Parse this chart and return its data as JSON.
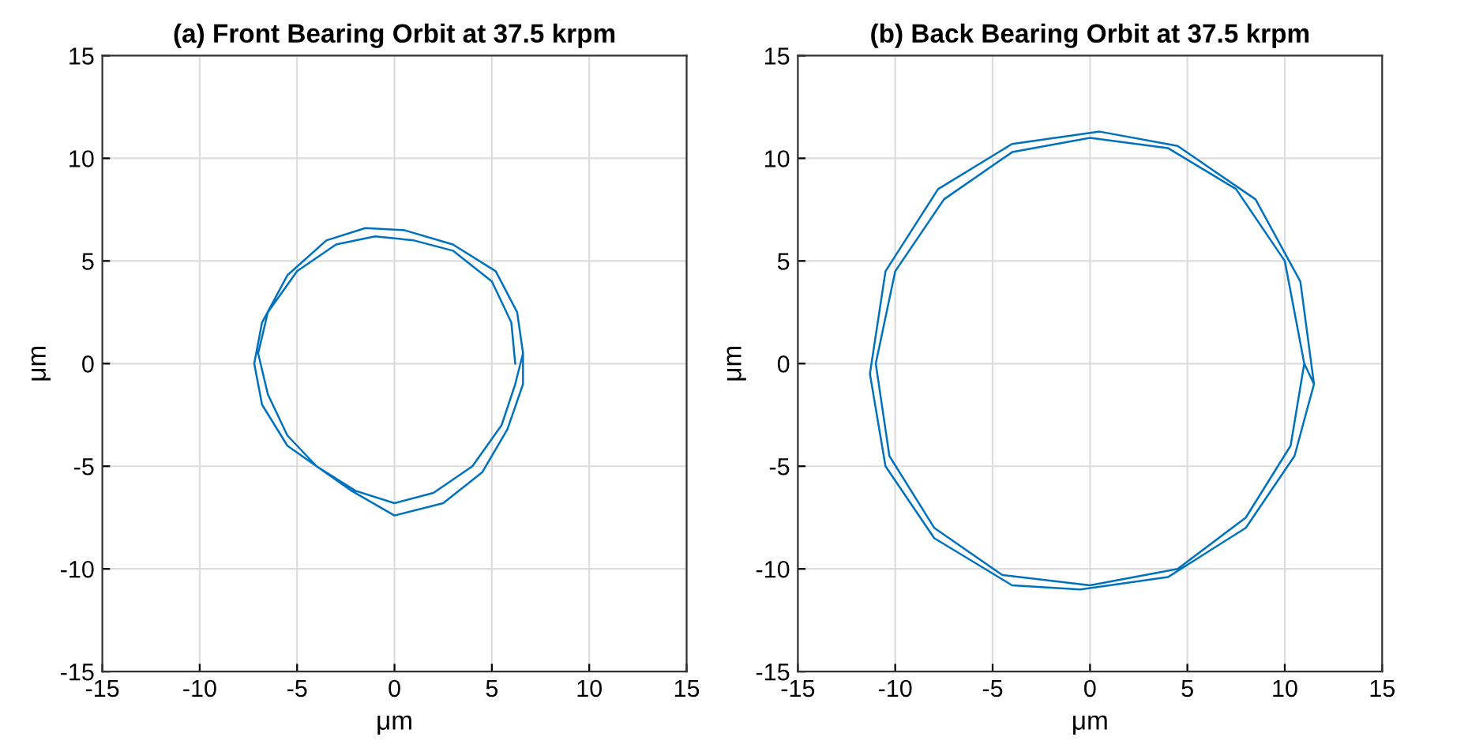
{
  "chart_data": [
    {
      "type": "line",
      "title": "(a) Front Bearing Orbit at 37.5 krpm",
      "xlabel": "μm",
      "ylabel": "μm",
      "xlim": [
        -15,
        15
      ],
      "ylim": [
        -15,
        15
      ],
      "xticks": [
        -15,
        -10,
        -5,
        0,
        5,
        10,
        15
      ],
      "yticks": [
        -15,
        -10,
        -5,
        0,
        5,
        10,
        15
      ],
      "grid": true,
      "series": [
        {
          "color": "#0072bd",
          "x": [
            6.2,
            6,
            5,
            3,
            1,
            -1,
            -3,
            -5,
            -6.5,
            -7,
            -6.5,
            -5.5,
            -4,
            -2,
            0,
            2,
            4,
            5.5,
            6.2,
            6.6,
            6.3,
            5.2,
            3,
            0.5,
            -1.5,
            -3.5,
            -5.5,
            -6.8,
            -7.2,
            -6.8,
            -5.5,
            -2.2,
            0,
            2.5,
            4.5,
            5.8,
            6.6,
            6.6
          ],
          "values": [
            0,
            2,
            4,
            5.5,
            6,
            6.2,
            5.8,
            4.5,
            2.5,
            0.5,
            -1.5,
            -3.5,
            -5,
            -6.2,
            -6.8,
            -6.3,
            -5,
            -3,
            -1,
            0.5,
            2.5,
            4.5,
            5.8,
            6.5,
            6.6,
            6,
            4.3,
            2,
            0,
            -2,
            -4,
            -6.2,
            -7.4,
            -6.8,
            -5.3,
            -3.2,
            -1,
            0.5
          ]
        }
      ]
    },
    {
      "type": "line",
      "title": "(b) Back Bearing Orbit at 37.5 krpm",
      "xlabel": "μm",
      "ylabel": "μm",
      "xlim": [
        -15,
        15
      ],
      "ylim": [
        -15,
        15
      ],
      "xticks": [
        -15,
        -10,
        -5,
        0,
        5,
        10,
        15
      ],
      "yticks": [
        -15,
        -10,
        -5,
        0,
        5,
        10,
        15
      ],
      "grid": true,
      "series": [
        {
          "color": "#0072bd",
          "x": [
            11,
            10,
            7.5,
            4,
            0,
            -4,
            -7.5,
            -10,
            -11,
            -10.3,
            -8,
            -4.5,
            0,
            4.5,
            8,
            10.3,
            11,
            11.5,
            10.8,
            8.5,
            4.5,
            0.5,
            -4,
            -7.8,
            -10.5,
            -11.3,
            -10.5,
            -8,
            -4,
            -0.5,
            4,
            8,
            10.5,
            11.5
          ],
          "values": [
            0,
            5,
            8.5,
            10.5,
            11,
            10.3,
            8,
            4.5,
            0,
            -4.5,
            -8,
            -10.3,
            -10.8,
            -10,
            -7.5,
            -4,
            0,
            -1,
            4,
            8,
            10.6,
            11.3,
            10.7,
            8.5,
            4.5,
            -0.5,
            -5,
            -8.5,
            -10.8,
            -11,
            -10.4,
            -8,
            -4.5,
            -1
          ]
        }
      ]
    }
  ]
}
